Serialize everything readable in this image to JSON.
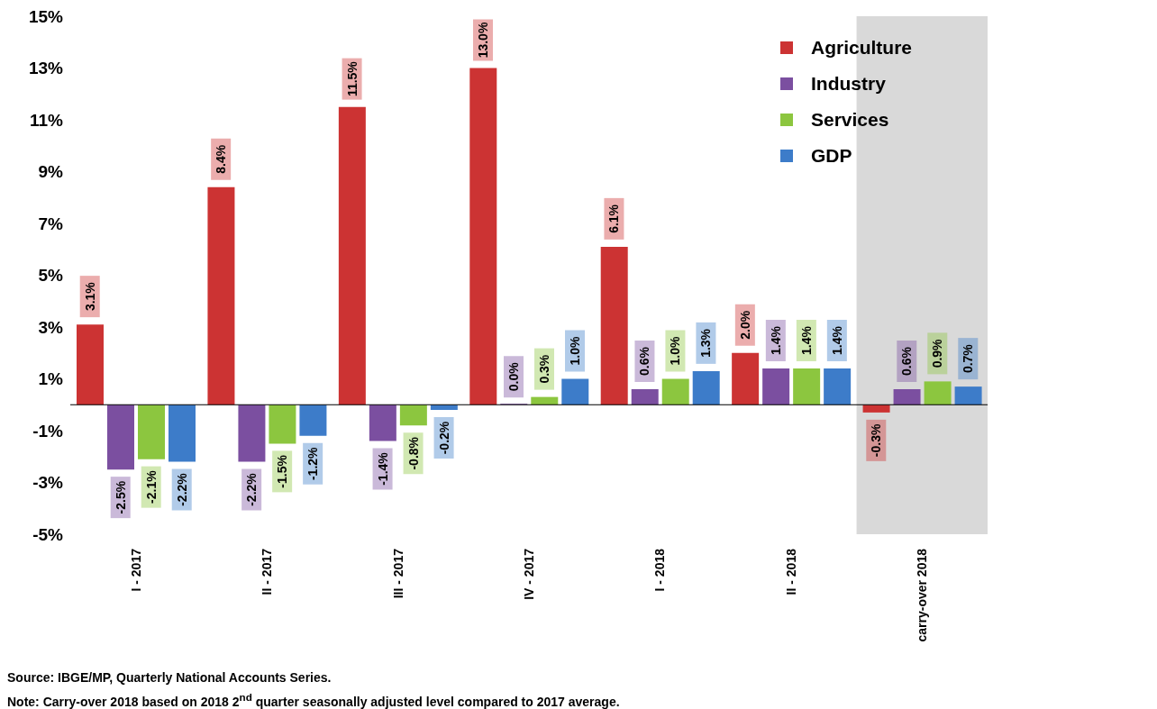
{
  "chart_data": {
    "type": "bar",
    "categories": [
      "I - 2017",
      "II - 2017",
      "III - 2017",
      "IV - 2017",
      "I - 2018",
      "II - 2018",
      "carry-over 2018"
    ],
    "series": [
      {
        "name": "Agriculture",
        "color": "#cc3333",
        "values": [
          3.1,
          8.4,
          11.5,
          13.0,
          6.1,
          2.0,
          -0.3
        ],
        "value_labels": [
          "3.1%",
          "8.4%",
          "11.5%",
          "13.0%",
          "6.1%",
          "2.0%",
          "-0.3%"
        ]
      },
      {
        "name": "Industry",
        "color": "#7b4fa0",
        "values": [
          -2.5,
          -2.2,
          -1.4,
          0.0,
          0.6,
          1.4,
          0.6
        ],
        "value_labels": [
          "-2.5%",
          "-2.2%",
          "-1.4%",
          "0.0%",
          "0.6%",
          "1.4%",
          "0.6%"
        ]
      },
      {
        "name": "Services",
        "color": "#8cc63f",
        "values": [
          -2.1,
          -1.5,
          -0.8,
          0.3,
          1.0,
          1.4,
          0.9
        ],
        "value_labels": [
          "-2.1%",
          "-1.5%",
          "-0.8%",
          "0.3%",
          "1.0%",
          "1.4%",
          "0.9%"
        ]
      },
      {
        "name": "GDP",
        "color": "#3d7cc9",
        "values": [
          -2.2,
          -1.2,
          -0.2,
          1.0,
          1.3,
          1.4,
          0.7
        ],
        "value_labels": [
          "-2.2%",
          "-1.2%",
          "-0.2%",
          "1.0%",
          "1.3%",
          "1.4%",
          "0.7%"
        ]
      }
    ],
    "ylim": [
      -5,
      15
    ],
    "yticks": [
      {
        "value": -5,
        "label": "-5%"
      },
      {
        "value": -3,
        "label": "-3%"
      },
      {
        "value": -1,
        "label": "-1%"
      },
      {
        "value": 1,
        "label": "1%"
      },
      {
        "value": 3,
        "label": "3%"
      },
      {
        "value": 5,
        "label": "5%"
      },
      {
        "value": 7,
        "label": "7%"
      },
      {
        "value": 9,
        "label": "9%"
      },
      {
        "value": 11,
        "label": "11%"
      },
      {
        "value": 13,
        "label": "13%"
      },
      {
        "value": 15,
        "label": "15%"
      }
    ],
    "bands": [
      {
        "axis": "x",
        "from": "carry-over 2018",
        "to": "carry-over 2018",
        "color": "#d9d9d9"
      }
    ],
    "grid": false,
    "legend": "top right",
    "annotations": [
      "Source: IBGE/MP, Quarterly National Accounts Series.",
      "Note: Carry-over 2018 based on 2018 2$^{nd}$ quarter seasonally adjusted level compared to 2017 average."
    ]
  }
}
